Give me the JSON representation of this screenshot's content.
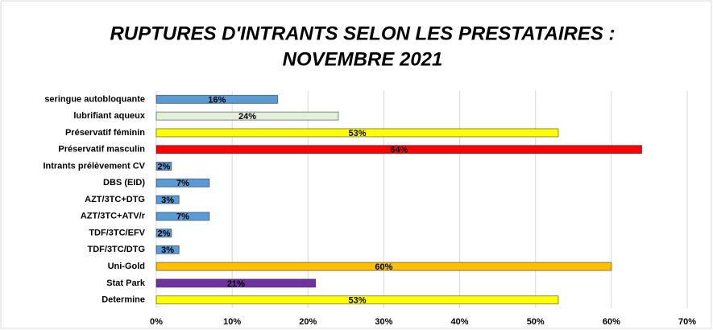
{
  "chart_data": {
    "type": "barh",
    "title": [
      "RUPTURES D'INTRANTS SELON LES PRESTATAIRES :",
      "NOVEMBRE 2021"
    ],
    "categories": [
      "seringue autobloquante",
      "lubrifiant aqueux",
      "Préservatif féminin",
      "Préservatif masculin",
      "Intrants prélèvement CV",
      "DBS (EID)",
      "AZT/3TC+DTG",
      "AZT/3TC+ATV/r",
      "TDF/3TC/EFV",
      "TDF/3TC/DTG",
      "Uni-Gold",
      "Stat Park",
      "Determine"
    ],
    "values": [
      16,
      24,
      53,
      64,
      2,
      7,
      3,
      7,
      2,
      3,
      60,
      21,
      53
    ],
    "value_labels": [
      "16%",
      "24%",
      "53%",
      "64%",
      "2%",
      "7%",
      "3%",
      "7%",
      "2%",
      "3%",
      "60%",
      "21%",
      "53%"
    ],
    "colors": [
      "#5b9bd5",
      "#e2efda",
      "#ffff00",
      "#ff0000",
      "#5b9bd5",
      "#5b9bd5",
      "#5b9bd5",
      "#5b9bd5",
      "#5b9bd5",
      "#5b9bd5",
      "#ffc000",
      "#7030a0",
      "#ffff00"
    ],
    "xlim": [
      0,
      70
    ],
    "xticks": [
      {
        "value": 0,
        "label": "0%"
      },
      {
        "value": 10,
        "label": "10%"
      },
      {
        "value": 20,
        "label": "20%"
      },
      {
        "value": 30,
        "label": "30%"
      },
      {
        "value": 40,
        "label": "40%"
      },
      {
        "value": 50,
        "label": "50%"
      },
      {
        "value": 60,
        "label": "60%"
      },
      {
        "value": 70,
        "label": "70%"
      }
    ],
    "grid": true
  }
}
